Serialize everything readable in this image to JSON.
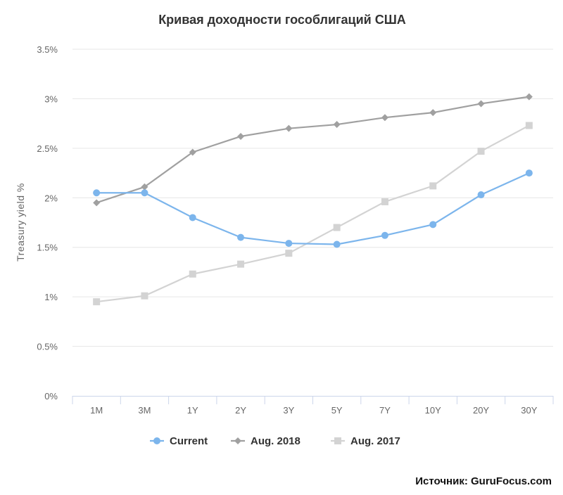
{
  "chart_data": {
    "type": "line",
    "title": "Кривая доходности гособлигаций США",
    "ylabel": "Treasury yield %",
    "xlabel": "",
    "categories": [
      "1M",
      "3M",
      "1Y",
      "2Y",
      "3Y",
      "5Y",
      "7Y",
      "10Y",
      "20Y",
      "30Y"
    ],
    "y_ticks": [
      0,
      0.5,
      1,
      1.5,
      2,
      2.5,
      3,
      3.5
    ],
    "y_tick_labels": [
      "0%",
      "0.5%",
      "1%",
      "1.5%",
      "2%",
      "2.5%",
      "3%",
      "3.5%"
    ],
    "ylim": [
      0,
      3.5
    ],
    "grid": true,
    "legend_position": "bottom",
    "series": [
      {
        "name": "Current",
        "color": "#7cb5ec",
        "marker": "circle",
        "values": [
          2.05,
          2.05,
          1.8,
          1.6,
          1.54,
          1.53,
          1.62,
          1.73,
          2.03,
          2.25
        ]
      },
      {
        "name": "Aug. 2018",
        "color": "#a0a0a0",
        "marker": "diamond",
        "values": [
          1.95,
          2.11,
          2.46,
          2.62,
          2.7,
          2.74,
          2.81,
          2.86,
          2.95,
          3.02
        ]
      },
      {
        "name": "Aug. 2017",
        "color": "#d3d3d3",
        "marker": "square",
        "values": [
          0.95,
          1.01,
          1.23,
          1.33,
          1.44,
          1.7,
          1.96,
          2.12,
          2.47,
          2.73
        ]
      }
    ]
  },
  "source": "Источник: GuruFocus.com"
}
